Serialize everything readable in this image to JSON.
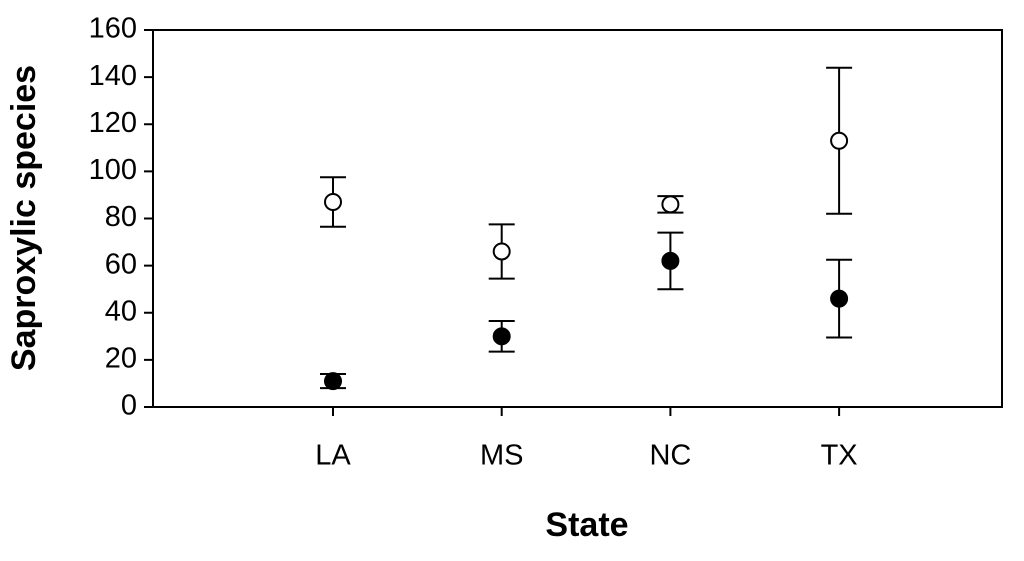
{
  "chart_data": {
    "type": "errorbar",
    "x_label": "State",
    "y_label": "Saproxylic species",
    "categories": [
      "LA",
      "MS",
      "NC",
      "TX"
    ],
    "series": [
      {
        "marker": "open",
        "color": "#000000",
        "values": [
          87,
          66,
          86,
          113
        ],
        "errors": [
          10.5,
          11.5,
          3.5,
          31
        ]
      },
      {
        "marker": "filled",
        "color": "#000000",
        "values": [
          11,
          30,
          62,
          46
        ],
        "errors": [
          3,
          6.5,
          12,
          16.5
        ]
      }
    ],
    "ylim": [
      0,
      160
    ],
    "yticks": [
      0,
      20,
      40,
      60,
      80,
      100,
      120,
      140,
      160
    ],
    "grid": false
  }
}
